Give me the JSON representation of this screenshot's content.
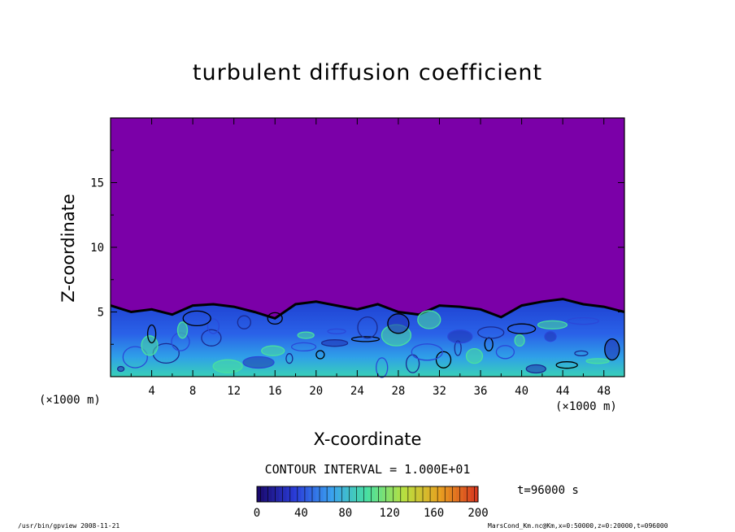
{
  "chart_data": {
    "type": "heatmap",
    "title": "turbulent diffusion coefficient",
    "xlabel": "X-coordinate",
    "ylabel": "Z-coordinate",
    "x_unit": "(×1000 m)",
    "xlim": [
      0,
      50
    ],
    "ylim": [
      0,
      20
    ],
    "x_ticks": [
      4,
      8,
      12,
      16,
      20,
      24,
      28,
      32,
      36,
      40,
      44,
      48
    ],
    "y_ticks": [
      5,
      10,
      15
    ],
    "colorbar": {
      "min": 0,
      "max": 200,
      "ticks": [
        0,
        40,
        80,
        120,
        160,
        200
      ],
      "colors": [
        "#1a0a6e",
        "#2a3cd8",
        "#3aa0f0",
        "#48e0a0",
        "#b8e040",
        "#e8a020",
        "#d83a20"
      ]
    },
    "contour_interval": "CONTOUR INTERVAL = 1.000E+01",
    "time": "t=96000 s",
    "background_color": "#7b00a8",
    "boundary_layer_height": [
      5.5,
      5.0,
      5.2,
      4.8,
      5.5,
      5.6,
      5.4,
      5.0,
      4.5,
      5.6,
      5.8,
      5.5,
      5.2,
      5.6,
      5.0,
      4.8,
      5.5,
      5.4,
      5.2,
      4.6,
      5.5,
      5.8,
      6.0,
      5.6,
      5.4,
      5.0
    ]
  },
  "footer": {
    "left": "/usr/bin/gpview   2008-11-21",
    "right": "MarsCond_Km.nc@Km,x=0:50000,z=0:20000,t=096000"
  }
}
